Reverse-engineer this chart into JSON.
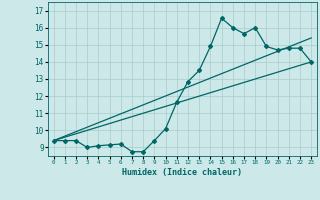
{
  "xlabel": "Humidex (Indice chaleur)",
  "bg_color": "#cce8e8",
  "grid_color": "#aacccc",
  "line_color": "#006666",
  "xlim": [
    -0.5,
    23.5
  ],
  "ylim": [
    8.5,
    17.5
  ],
  "xticks": [
    0,
    1,
    2,
    3,
    4,
    5,
    6,
    7,
    8,
    9,
    10,
    11,
    12,
    13,
    14,
    15,
    16,
    17,
    18,
    19,
    20,
    21,
    22,
    23
  ],
  "yticks": [
    9,
    10,
    11,
    12,
    13,
    14,
    15,
    16,
    17
  ],
  "line1_x": [
    0,
    1,
    2,
    3,
    4,
    5,
    6,
    7,
    8,
    9,
    10,
    11,
    12,
    13,
    14,
    15,
    16,
    17,
    18,
    19,
    20,
    21,
    22,
    23
  ],
  "line1_y": [
    9.4,
    9.4,
    9.4,
    9.0,
    9.1,
    9.15,
    9.2,
    8.75,
    8.75,
    9.4,
    10.1,
    11.65,
    12.85,
    13.5,
    14.9,
    16.55,
    16.0,
    15.65,
    16.0,
    14.9,
    14.7,
    14.8,
    14.8,
    14.0
  ],
  "line2_x": [
    0,
    23
  ],
  "line2_y": [
    9.4,
    15.4
  ],
  "line3_x": [
    0,
    23
  ],
  "line3_y": [
    9.4,
    14.0
  ]
}
